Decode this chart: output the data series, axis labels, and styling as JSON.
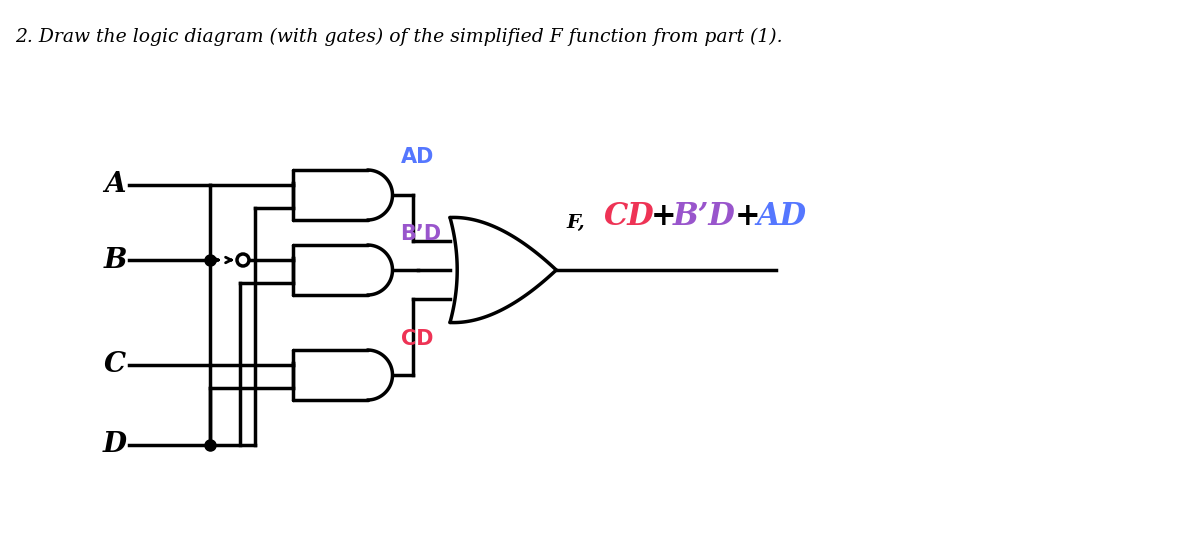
{
  "title": "2. Draw the logic diagram (with gates) of the simplified F function from part (1).",
  "title_fontsize": 13.5,
  "bg_color": "#ffffff",
  "line_color": "#000000",
  "label_A": "A",
  "label_B": "B",
  "label_C": "C",
  "label_D": "D",
  "label_AD": "AD",
  "label_BD": "B’D",
  "label_CD": "CD",
  "label_F": "F,",
  "color_AD": "#5577ff",
  "color_BD": "#9955cc",
  "color_CD": "#ee3355",
  "color_output_AD": "#5577ff",
  "color_output_BD": "#9955cc",
  "color_output_CD": "#ee3355"
}
